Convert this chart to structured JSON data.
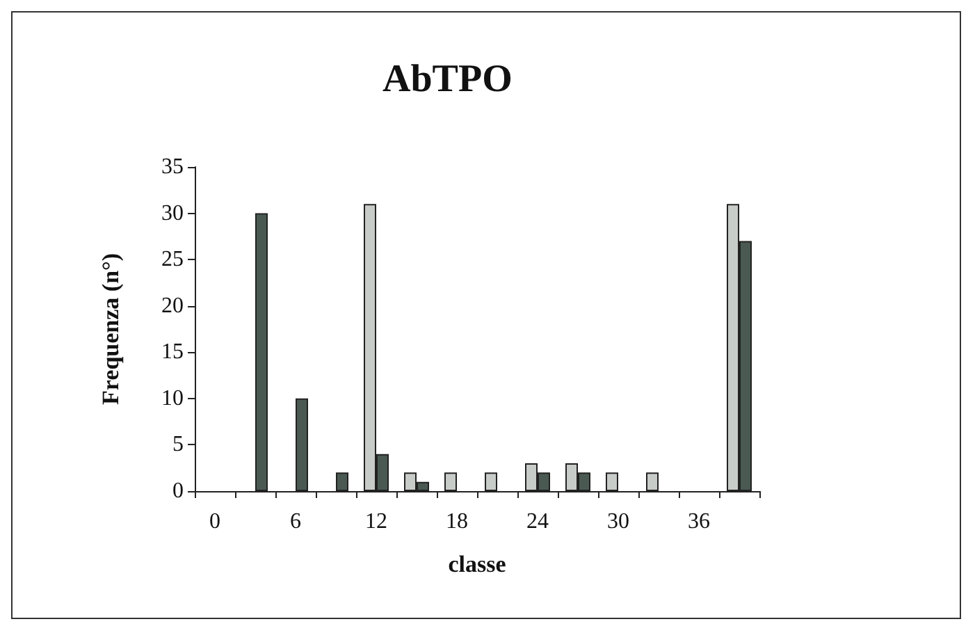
{
  "chart_data": {
    "type": "bar",
    "title": "AbTPO",
    "xlabel": "classe",
    "ylabel": "Frequenza (n°)",
    "categories": [
      "0",
      null,
      "6",
      null,
      "12",
      null,
      "18",
      null,
      "24",
      null,
      "30",
      null,
      "36",
      null
    ],
    "series": [
      {
        "color": "#c8ccc8",
        "values": [
          0,
          0,
          0,
          0,
          31,
          2,
          2,
          2,
          3,
          3,
          2,
          2,
          0,
          31
        ]
      },
      {
        "color": "#4a5a52",
        "values": [
          0,
          30,
          10,
          2,
          4,
          1,
          0,
          0,
          2,
          2,
          0,
          0,
          0,
          27
        ]
      }
    ],
    "ylim": [
      0,
      35
    ],
    "yticks": [
      0,
      5,
      10,
      15,
      20,
      25,
      30,
      35
    ],
    "grid": false
  }
}
